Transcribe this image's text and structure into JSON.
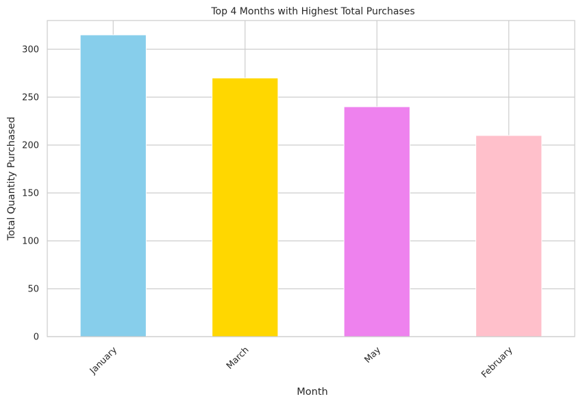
{
  "chart_data": {
    "type": "bar",
    "title": "Top 4 Months with Highest Total Purchases",
    "xlabel": "Month",
    "ylabel": "Total Quantity Purchased",
    "categories": [
      "January",
      "March",
      "May",
      "February"
    ],
    "values": [
      315,
      270,
      240,
      210
    ],
    "colors": [
      "#87ceeb",
      "#ffd700",
      "#ee82ee",
      "#ffc0cb"
    ],
    "ylim": [
      0,
      330
    ],
    "yticks": [
      0,
      50,
      100,
      150,
      200,
      250,
      300
    ],
    "grid": true,
    "legend": "none"
  }
}
